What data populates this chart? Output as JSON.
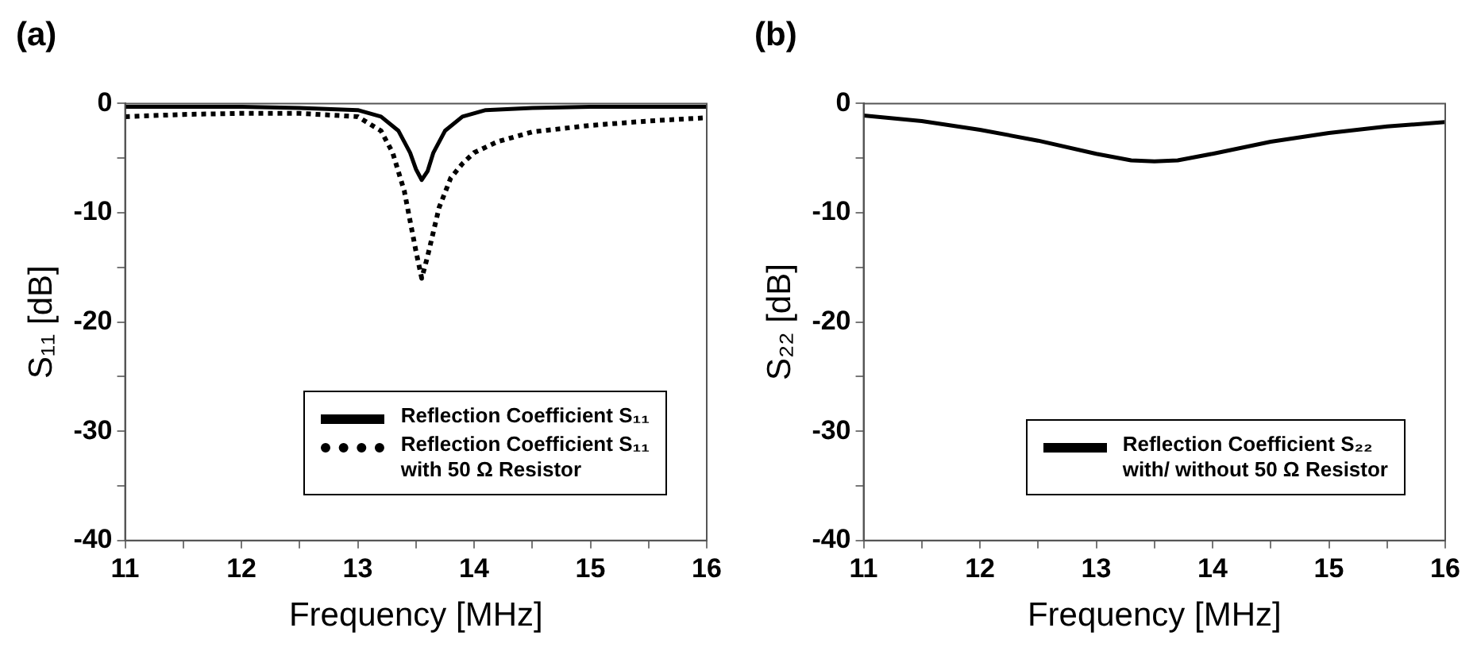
{
  "chart_data": [
    {
      "type": "line",
      "title": "(a)",
      "xlabel": "Frequency [MHz]",
      "ylabel": "S₁₁ [dB]",
      "xlim": [
        11,
        16
      ],
      "ylim": [
        -40,
        0
      ],
      "xticks": [
        11,
        {
          "value": 11.5,
          "label": null
        },
        12,
        {
          "value": 12.5,
          "label": null
        },
        13,
        {
          "value": 13.5,
          "label": null
        },
        14,
        {
          "value": 14.5,
          "label": null
        },
        15,
        {
          "value": 15.5,
          "label": null
        },
        16
      ],
      "yticks": [
        -40,
        {
          "value": -35,
          "label": null
        },
        -30,
        {
          "value": -25,
          "label": null
        },
        -20,
        {
          "value": -15,
          "label": null
        },
        -10,
        {
          "value": -5,
          "label": null
        },
        0
      ],
      "grid": false,
      "legend": "bottom right",
      "marker": "none",
      "series": [
        {
          "name": "Reflection Coefficient S₁₁",
          "color": "#000000",
          "line_style": "solid",
          "x": [
            11,
            11.5,
            12,
            12.5,
            13,
            13.2,
            13.35,
            13.45,
            13.5,
            13.55,
            13.6,
            13.65,
            13.75,
            13.9,
            14.1,
            14.5,
            15,
            16
          ],
          "values": [
            -0.3,
            -0.3,
            -0.3,
            -0.4,
            -0.6,
            -1.2,
            -2.5,
            -4.5,
            -6,
            -7,
            -6.2,
            -4.5,
            -2.5,
            -1.2,
            -0.6,
            -0.4,
            -0.3,
            -0.3
          ]
        },
        {
          "name": "Reflection Coefficient S₁₁\nwith 50 Ω Resistor",
          "color": "#000000",
          "line_style": "dotted",
          "x": [
            11,
            11.5,
            12,
            12.5,
            13,
            13.2,
            13.3,
            13.4,
            13.5,
            13.55,
            13.6,
            13.7,
            13.8,
            13.9,
            14,
            14.2,
            14.5,
            15,
            15.5,
            16
          ],
          "values": [
            -1.2,
            -1,
            -0.9,
            -0.9,
            -1.2,
            -2.5,
            -4.5,
            -8,
            -13.5,
            -16,
            -14,
            -9.5,
            -6.8,
            -5.5,
            -4.5,
            -3.5,
            -2.6,
            -2,
            -1.6,
            -1.3
          ]
        }
      ]
    },
    {
      "type": "line",
      "title": "(b)",
      "xlabel": "Frequency [MHz]",
      "ylabel": "S₂₂ [dB]",
      "xlim": [
        11,
        16
      ],
      "ylim": [
        -40,
        0
      ],
      "xticks": [
        11,
        {
          "value": 11.5,
          "label": null
        },
        12,
        {
          "value": 12.5,
          "label": null
        },
        13,
        {
          "value": 13.5,
          "label": null
        },
        14,
        {
          "value": 14.5,
          "label": null
        },
        15,
        {
          "value": 15.5,
          "label": null
        },
        16
      ],
      "yticks": [
        -40,
        {
          "value": -35,
          "label": null
        },
        -30,
        {
          "value": -25,
          "label": null
        },
        -20,
        {
          "value": -15,
          "label": null
        },
        -10,
        {
          "value": -5,
          "label": null
        },
        0
      ],
      "grid": false,
      "legend": "bottom right",
      "marker": "none",
      "series": [
        {
          "name": "Reflection Coefficient S₂₂\nwith/ without 50 Ω Resistor",
          "color": "#000000",
          "line_style": "solid",
          "x": [
            11,
            11.5,
            12,
            12.5,
            13,
            13.3,
            13.5,
            13.7,
            14,
            14.5,
            15,
            15.5,
            16
          ],
          "values": [
            -1.1,
            -1.6,
            -2.4,
            -3.4,
            -4.6,
            -5.2,
            -5.3,
            -5.2,
            -4.6,
            -3.5,
            -2.7,
            -2.1,
            -1.7
          ]
        }
      ]
    }
  ]
}
